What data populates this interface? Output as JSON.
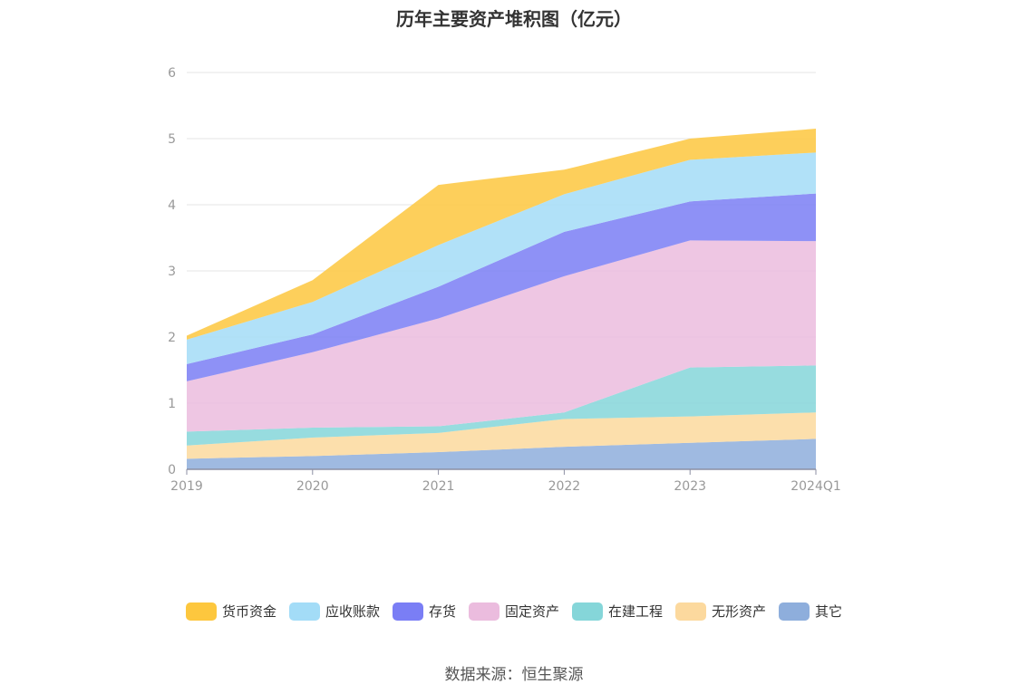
{
  "title": "历年主要资产堆积图（亿元）",
  "source": "数据来源：恒生聚源",
  "chart_data": {
    "type": "area",
    "stacked": true,
    "title": "历年主要资产堆积图（亿元）",
    "x": [
      "2019",
      "2020",
      "2021",
      "2022",
      "2023",
      "2024Q1"
    ],
    "ylim": [
      0,
      6
    ],
    "yticks": [
      "0",
      "1",
      "2",
      "3",
      "4",
      "5",
      "6"
    ],
    "grid": true,
    "legend_position": "bottom",
    "series": [
      {
        "name": "其它",
        "color": "#8eaedc",
        "values": [
          0.16,
          0.2,
          0.26,
          0.34,
          0.4,
          0.46
        ]
      },
      {
        "name": "无形资产",
        "color": "#fcd99e",
        "values": [
          0.2,
          0.28,
          0.29,
          0.42,
          0.4,
          0.4
        ]
      },
      {
        "name": "在建工程",
        "color": "#85d6d9",
        "values": [
          0.21,
          0.15,
          0.1,
          0.1,
          0.74,
          0.71
        ]
      },
      {
        "name": "固定资产",
        "color": "#ebbcde",
        "values": [
          0.76,
          1.14,
          1.63,
          2.06,
          1.92,
          1.88
        ]
      },
      {
        "name": "存货",
        "color": "#7a7ef5",
        "values": [
          0.26,
          0.27,
          0.48,
          0.67,
          0.59,
          0.72
        ]
      },
      {
        "name": "应收账款",
        "color": "#a3dcf7",
        "values": [
          0.37,
          0.49,
          0.63,
          0.57,
          0.63,
          0.62
        ]
      },
      {
        "name": "货币资金",
        "color": "#fdc73e",
        "values": [
          0.06,
          0.33,
          0.91,
          0.37,
          0.32,
          0.36
        ]
      }
    ],
    "legend": [
      "货币资金",
      "应收账款",
      "存货",
      "固定资产",
      "在建工程",
      "无形资产",
      "其它"
    ]
  }
}
